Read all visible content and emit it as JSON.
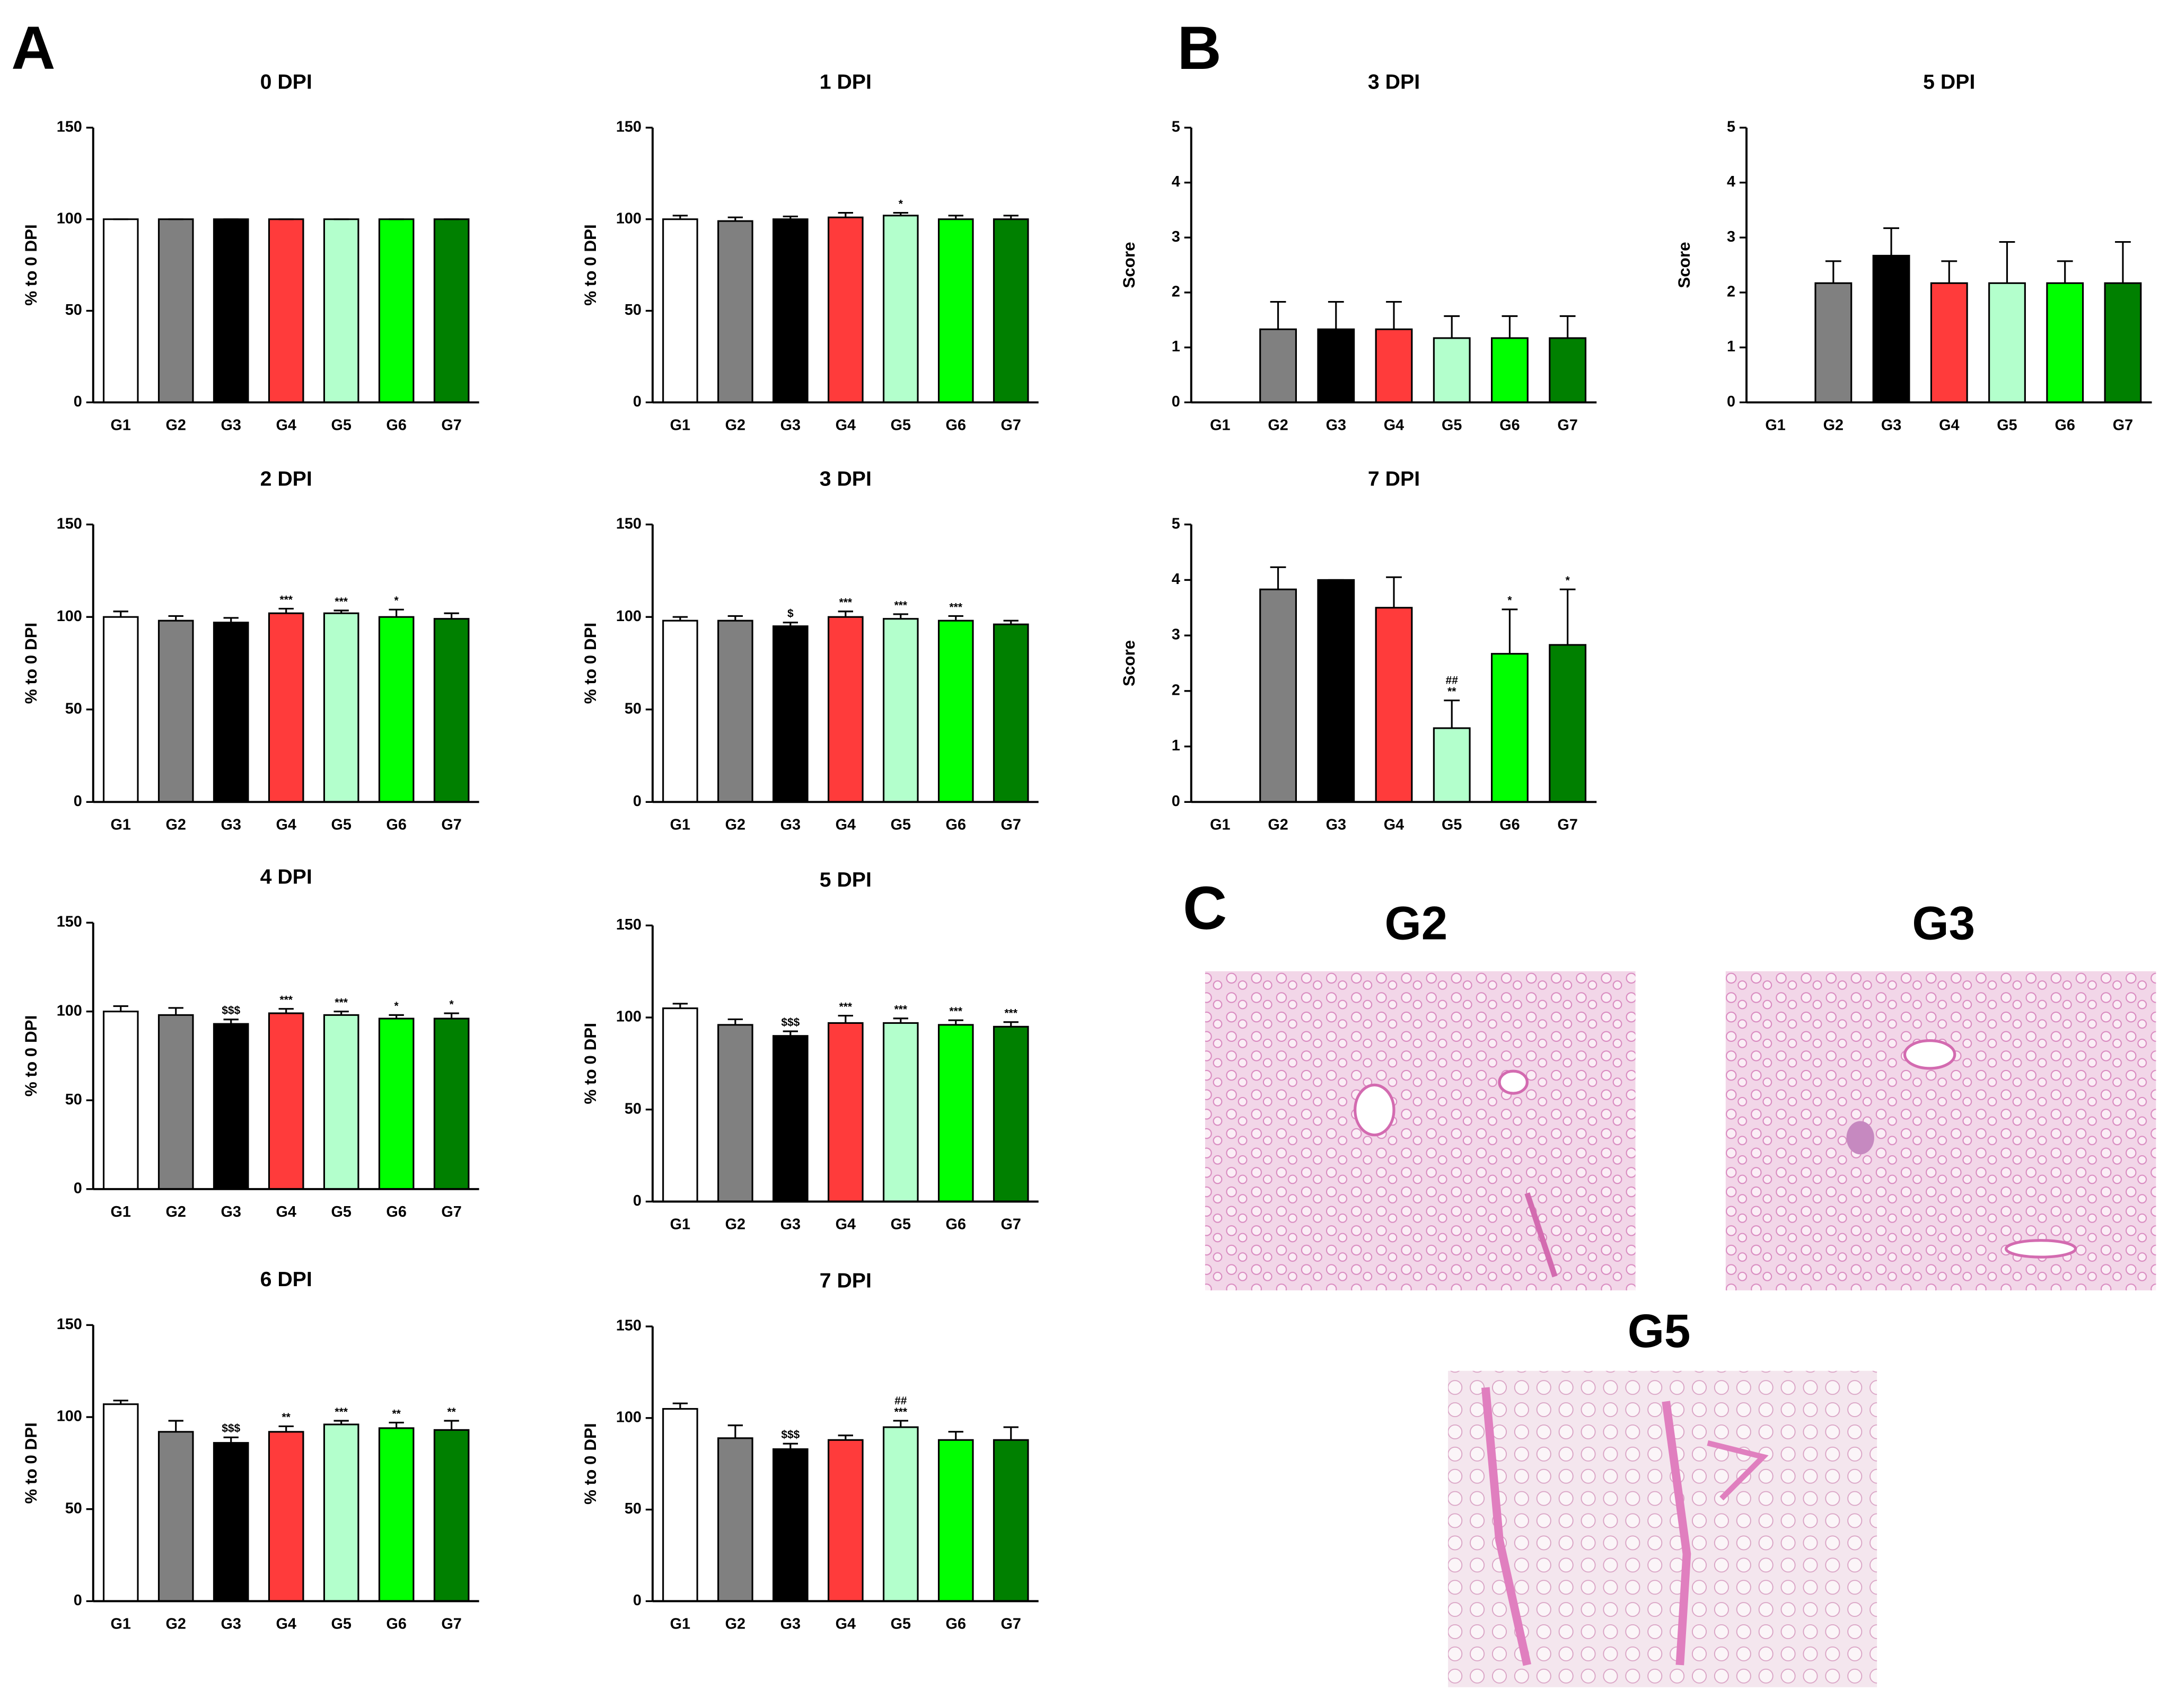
{
  "panel_labels": [
    "A",
    "B",
    "C"
  ],
  "image_labels": [
    "G2",
    "G3",
    "G5"
  ],
  "chart_data": [
    {
      "type": "bar",
      "title": "0 DPI",
      "ylabel": "% to 0 DPI",
      "categories": [
        "G1",
        "G2",
        "G3",
        "G4",
        "G5",
        "G6",
        "G7"
      ],
      "values": [
        100,
        100,
        100,
        100,
        100,
        100,
        100
      ],
      "errors": [
        0,
        0,
        0,
        0,
        0,
        0,
        0
      ],
      "annotations": [
        null,
        null,
        null,
        null,
        null,
        null,
        null
      ],
      "colors": [
        "#ffffff",
        "#808080",
        "#000000",
        "#ff3b3b",
        "#b3ffcc",
        "#00ff00",
        "#008000"
      ],
      "ylim": [
        0,
        150
      ],
      "yticks": [
        0,
        50,
        100,
        150
      ]
    },
    {
      "type": "bar",
      "title": "1 DPI",
      "ylabel": "% to 0 DPI",
      "categories": [
        "G1",
        "G2",
        "G3",
        "G4",
        "G5",
        "G6",
        "G7"
      ],
      "values": [
        100,
        99,
        100,
        101,
        102,
        100,
        100
      ],
      "errors": [
        2,
        2,
        1.5,
        2.5,
        1.5,
        2,
        2
      ],
      "annotations": [
        null,
        null,
        null,
        null,
        "*",
        null,
        null
      ],
      "colors": [
        "#ffffff",
        "#808080",
        "#000000",
        "#ff3b3b",
        "#b3ffcc",
        "#00ff00",
        "#008000"
      ],
      "ylim": [
        0,
        150
      ],
      "yticks": [
        0,
        50,
        100,
        150
      ]
    },
    {
      "type": "bar",
      "title": "2 DPI",
      "ylabel": "% to 0 DPI",
      "categories": [
        "G1",
        "G2",
        "G3",
        "G4",
        "G5",
        "G6",
        "G7"
      ],
      "values": [
        100,
        98,
        97,
        102,
        102,
        100,
        99
      ],
      "errors": [
        3,
        2.5,
        2.5,
        2.5,
        1.5,
        4,
        3
      ],
      "annotations": [
        null,
        null,
        null,
        "***",
        "***",
        "*",
        null
      ],
      "colors": [
        "#ffffff",
        "#808080",
        "#000000",
        "#ff3b3b",
        "#b3ffcc",
        "#00ff00",
        "#008000"
      ],
      "ylim": [
        0,
        150
      ],
      "yticks": [
        0,
        50,
        100,
        150
      ]
    },
    {
      "type": "bar",
      "title": "3 DPI",
      "ylabel": "% to 0 DPI",
      "categories": [
        "G1",
        "G2",
        "G3",
        "G4",
        "G5",
        "G6",
        "G7"
      ],
      "values": [
        98,
        98,
        95,
        100,
        99,
        98,
        96
      ],
      "errors": [
        2,
        2.5,
        2,
        3,
        2.5,
        2.5,
        2
      ],
      "annotations": [
        null,
        null,
        "$",
        "***",
        "***",
        "***",
        null
      ],
      "colors": [
        "#ffffff",
        "#808080",
        "#000000",
        "#ff3b3b",
        "#b3ffcc",
        "#00ff00",
        "#008000"
      ],
      "ylim": [
        0,
        150
      ],
      "yticks": [
        0,
        50,
        100,
        150
      ]
    },
    {
      "type": "bar",
      "title": "4 DPI",
      "ylabel": "% to 0 DPI",
      "categories": [
        "G1",
        "G2",
        "G3",
        "G4",
        "G5",
        "G6",
        "G7"
      ],
      "values": [
        100,
        98,
        93,
        99,
        98,
        96,
        96
      ],
      "errors": [
        3,
        4,
        2.5,
        2.5,
        2,
        2,
        3
      ],
      "annotations": [
        null,
        null,
        "$$$",
        "***",
        "***",
        "*",
        "*"
      ],
      "colors": [
        "#ffffff",
        "#808080",
        "#000000",
        "#ff3b3b",
        "#b3ffcc",
        "#00ff00",
        "#008000"
      ],
      "ylim": [
        0,
        150
      ],
      "yticks": [
        0,
        50,
        100,
        150
      ]
    },
    {
      "type": "bar",
      "title": "5 DPI",
      "ylabel": "% to 0 DPI",
      "categories": [
        "G1",
        "G2",
        "G3",
        "G4",
        "G5",
        "G6",
        "G7"
      ],
      "values": [
        105,
        96,
        90,
        97,
        97,
        96,
        95
      ],
      "errors": [
        2.5,
        3,
        2.5,
        4,
        2.5,
        2.5,
        2.5
      ],
      "annotations": [
        null,
        null,
        "$$$",
        "***",
        "***",
        "***",
        "***"
      ],
      "colors": [
        "#ffffff",
        "#808080",
        "#000000",
        "#ff3b3b",
        "#b3ffcc",
        "#00ff00",
        "#008000"
      ],
      "ylim": [
        0,
        150
      ],
      "yticks": [
        0,
        50,
        100,
        150
      ]
    },
    {
      "type": "bar",
      "title": "6 DPI",
      "ylabel": "% to 0 DPI",
      "categories": [
        "G1",
        "G2",
        "G3",
        "G4",
        "G5",
        "G6",
        "G7"
      ],
      "values": [
        107,
        92,
        86,
        92,
        96,
        94,
        93
      ],
      "errors": [
        2,
        6,
        3,
        3,
        2,
        3,
        5
      ],
      "annotations": [
        null,
        null,
        "$$$",
        "**",
        "***",
        "**",
        "**"
      ],
      "colors": [
        "#ffffff",
        "#808080",
        "#000000",
        "#ff3b3b",
        "#b3ffcc",
        "#00ff00",
        "#008000"
      ],
      "ylim": [
        0,
        150
      ],
      "yticks": [
        0,
        50,
        100,
        150
      ]
    },
    {
      "type": "bar",
      "title": "7 DPI",
      "ylabel": "% to 0 DPI",
      "categories": [
        "G1",
        "G2",
        "G3",
        "G4",
        "G5",
        "G6",
        "G7"
      ],
      "values": [
        105,
        89,
        83,
        88,
        95,
        88,
        88
      ],
      "errors": [
        3,
        7,
        3,
        2.5,
        3.5,
        4.5,
        7
      ],
      "annotations": [
        null,
        null,
        "$$$",
        null,
        [
          "##",
          "***"
        ],
        null,
        null
      ],
      "colors": [
        "#ffffff",
        "#808080",
        "#000000",
        "#ff3b3b",
        "#b3ffcc",
        "#00ff00",
        "#008000"
      ],
      "ylim": [
        0,
        150
      ],
      "yticks": [
        0,
        50,
        100,
        150
      ]
    },
    {
      "type": "bar",
      "title": "3 DPI",
      "ylabel": "Score",
      "categories": [
        "G1",
        "G2",
        "G3",
        "G4",
        "G5",
        "G6",
        "G7"
      ],
      "values": [
        0,
        1.33,
        1.33,
        1.33,
        1.17,
        1.17,
        1.17
      ],
      "errors": [
        0,
        0.5,
        0.5,
        0.5,
        0.4,
        0.4,
        0.4
      ],
      "annotations": [
        null,
        null,
        null,
        null,
        null,
        null,
        null
      ],
      "colors": [
        "#ffffff",
        "#808080",
        "#000000",
        "#ff3b3b",
        "#b3ffcc",
        "#00ff00",
        "#008000"
      ],
      "ylim": [
        0,
        5
      ],
      "yticks": [
        0,
        1,
        2,
        3,
        4,
        5
      ]
    },
    {
      "type": "bar",
      "title": "5 DPI",
      "ylabel": "Score",
      "categories": [
        "G1",
        "G2",
        "G3",
        "G4",
        "G5",
        "G6",
        "G7"
      ],
      "values": [
        0,
        2.17,
        2.67,
        2.17,
        2.17,
        2.17,
        2.17
      ],
      "errors": [
        0,
        0.4,
        0.5,
        0.4,
        0.75,
        0.4,
        0.75
      ],
      "annotations": [
        null,
        null,
        null,
        null,
        null,
        null,
        null
      ],
      "colors": [
        "#ffffff",
        "#808080",
        "#000000",
        "#ff3b3b",
        "#b3ffcc",
        "#00ff00",
        "#008000"
      ],
      "ylim": [
        0,
        5
      ],
      "yticks": [
        0,
        1,
        2,
        3,
        4,
        5
      ]
    },
    {
      "type": "bar",
      "title": "7 DPI",
      "ylabel": "Score",
      "categories": [
        "G1",
        "G2",
        "G3",
        "G4",
        "G5",
        "G6",
        "G7"
      ],
      "values": [
        0,
        3.83,
        4,
        3.5,
        1.33,
        2.67,
        2.83
      ],
      "errors": [
        0,
        0.4,
        0,
        0.55,
        0.5,
        0.8,
        1.0
      ],
      "annotations": [
        null,
        null,
        null,
        null,
        [
          "##",
          "**"
        ],
        "*",
        "*"
      ],
      "colors": [
        "#ffffff",
        "#808080",
        "#000000",
        "#ff3b3b",
        "#b3ffcc",
        "#00ff00",
        "#008000"
      ],
      "ylim": [
        0,
        5
      ],
      "yticks": [
        0,
        1,
        2,
        3,
        4,
        5
      ]
    }
  ]
}
